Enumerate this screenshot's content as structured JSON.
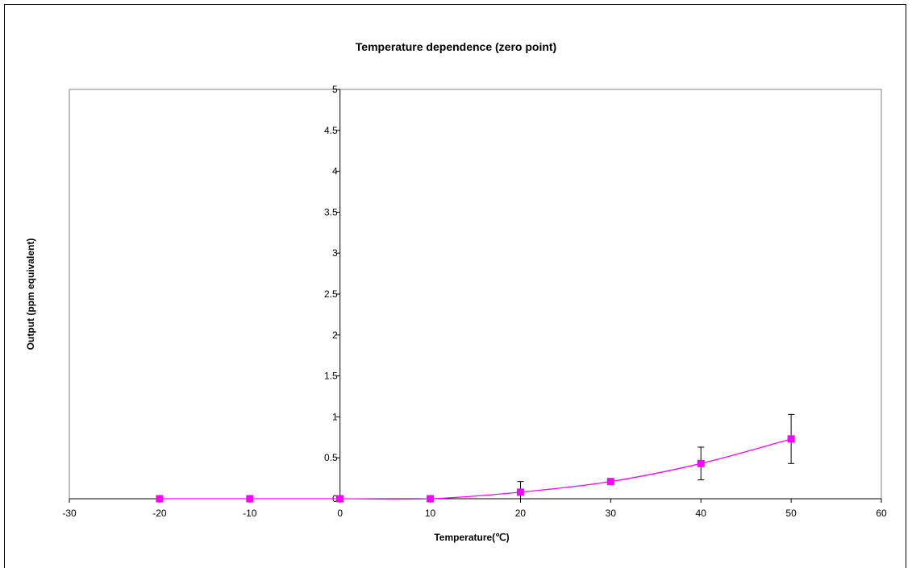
{
  "chart_data": {
    "type": "scatter",
    "title": "Temperature dependence (zero point)",
    "xlabel": "Temperature(℃)",
    "ylabel": "Output (ppm equivalent)",
    "xlim": [
      -30,
      60
    ],
    "ylim": [
      0,
      5
    ],
    "x_ticks": [
      -30,
      -20,
      -10,
      0,
      10,
      20,
      30,
      40,
      50,
      60
    ],
    "y_ticks": [
      0,
      0.5,
      1,
      1.5,
      2,
      2.5,
      3,
      3.5,
      4,
      4.5,
      5
    ],
    "y_axis_crosses_at_x": 0,
    "grid": false,
    "legend": "none",
    "series": [
      {
        "color": "#ff00ff",
        "marker": "square",
        "smoothed_line": true,
        "x": [
          -20,
          -10,
          0,
          10,
          20,
          30,
          40,
          50
        ],
        "y": [
          0,
          0,
          0,
          0,
          0.08,
          0.21,
          0.43,
          0.73
        ],
        "error": [
          0,
          0,
          0,
          0,
          0.13,
          0,
          0.2,
          0.3
        ]
      }
    ]
  }
}
